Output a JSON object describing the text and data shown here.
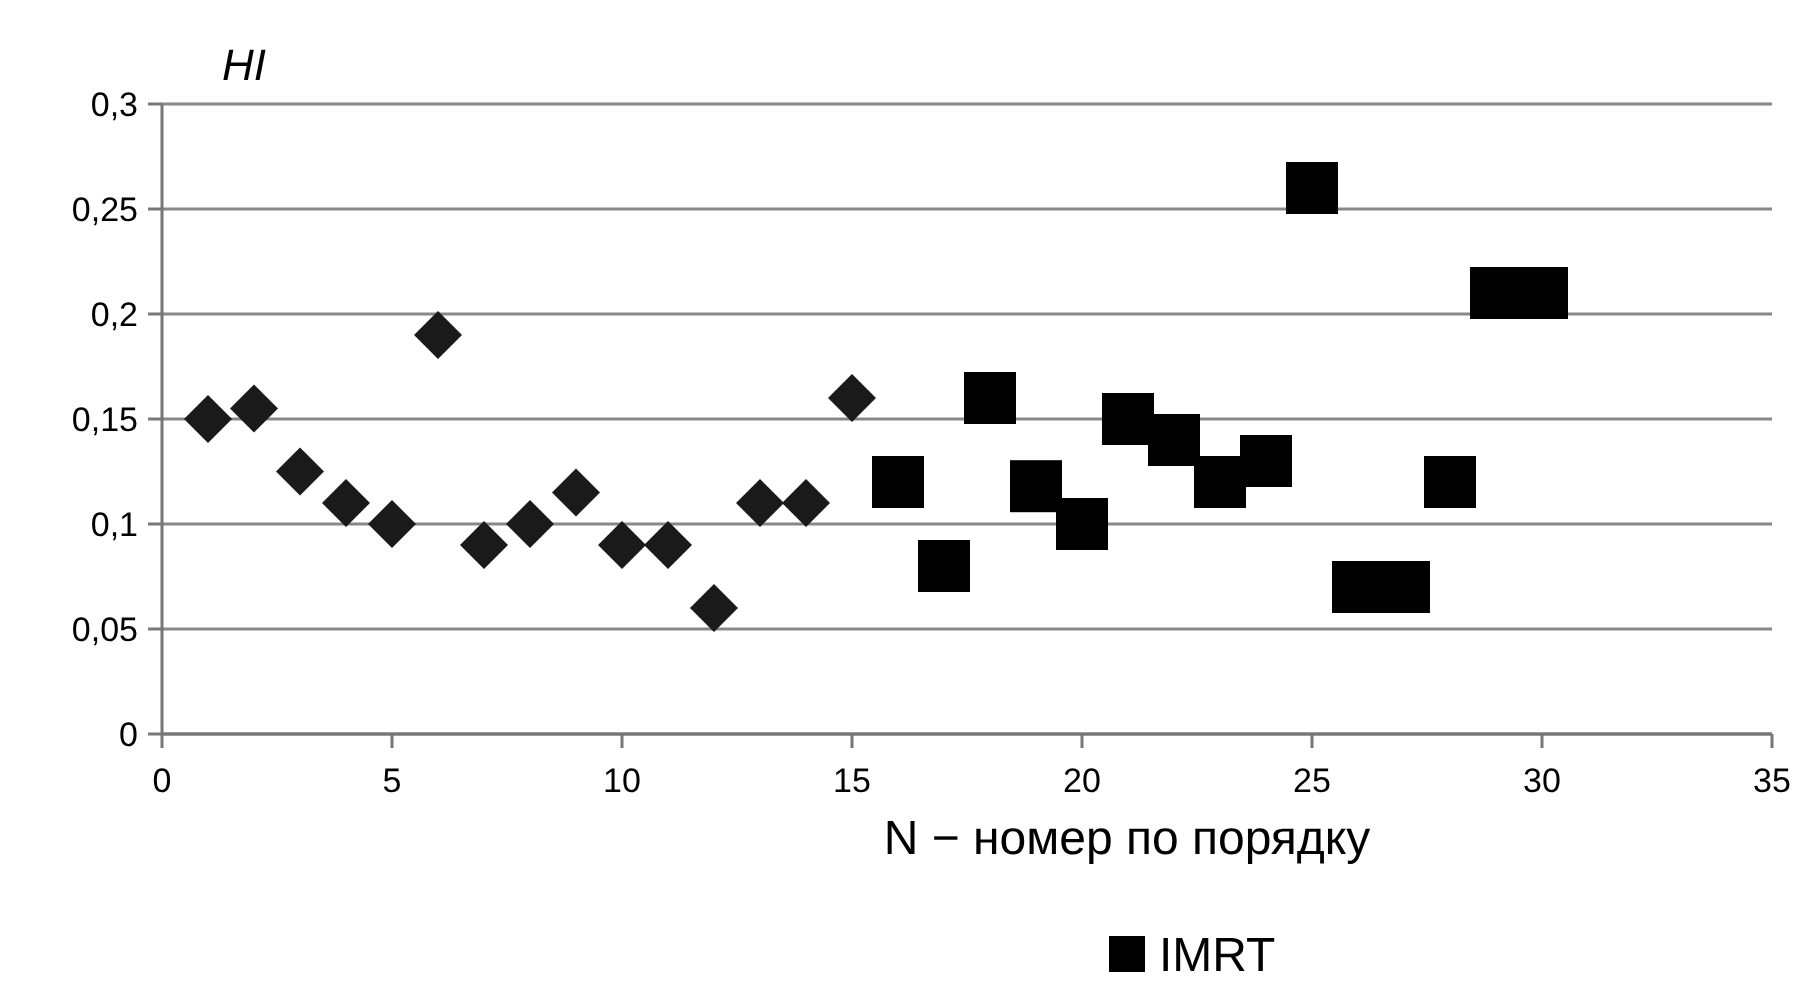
{
  "chart_data": {
    "type": "scatter",
    "ylabel": "HI",
    "xlabel": "N − номер по порядку",
    "xlim": [
      0,
      35
    ],
    "xticks": [
      0,
      5,
      10,
      15,
      20,
      25,
      30,
      35
    ],
    "ylim": [
      0,
      0.3
    ],
    "yticks": [
      0,
      {
        "value": 0.05,
        "label": "0,05"
      },
      {
        "value": 0.1,
        "label": "0,1"
      },
      {
        "value": 0.15,
        "label": "0,15"
      },
      {
        "value": 0.2,
        "label": "0,2"
      },
      {
        "value": 0.25,
        "label": "0,25"
      },
      {
        "value": 0.3,
        "label": "0,3"
      }
    ],
    "grid": "y",
    "legend": "bottom",
    "series": [
      {
        "color": "#1a1a1a",
        "marker": "diamond",
        "x": [
          1,
          2,
          3,
          4,
          5,
          6,
          7,
          8,
          9,
          10,
          11,
          12,
          13,
          14,
          15
        ],
        "values": [
          0.15,
          0.155,
          0.125,
          0.11,
          0.1,
          0.19,
          0.09,
          0.1,
          0.115,
          0.09,
          0.09,
          0.06,
          0.11,
          0.11,
          0.16
        ]
      },
      {
        "name": "IMRT",
        "color": "#000000",
        "marker": "square",
        "x": [
          16,
          17,
          18,
          19,
          20,
          21,
          22,
          23,
          24,
          25,
          26,
          27,
          28,
          29,
          30
        ],
        "values": [
          0.12,
          0.08,
          0.16,
          0.118,
          0.1,
          0.15,
          0.14,
          0.12,
          0.13,
          0.26,
          0.07,
          0.07,
          0.12,
          0.21,
          0.21
        ]
      }
    ]
  }
}
